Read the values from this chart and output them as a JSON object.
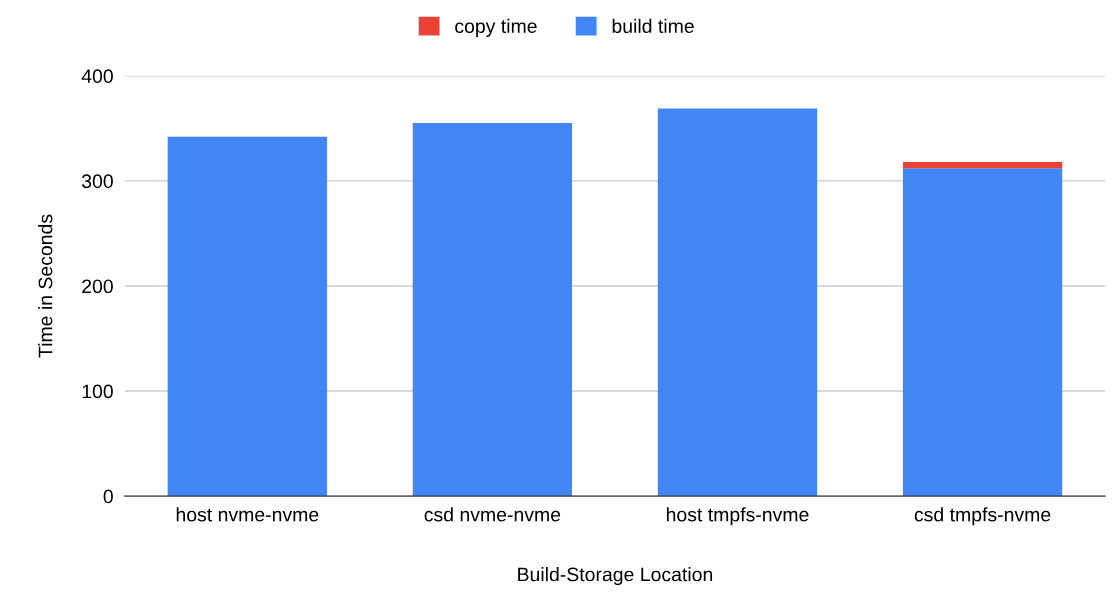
{
  "chart_data": {
    "type": "bar",
    "stacked": true,
    "xlabel": "Build-Storage Location",
    "ylabel": "Time in Seconds",
    "categories": [
      "host nvme-nvme",
      "csd nvme-nvme",
      "host tmpfs-nvme",
      "csd tmpfs-nvme"
    ],
    "series": [
      {
        "name": "build time",
        "color": "#4285f4",
        "values": [
          342,
          355,
          369,
          312
        ]
      },
      {
        "name": "copy time",
        "color": "#ea4335",
        "values": [
          0,
          0,
          0,
          6
        ]
      }
    ],
    "ylim": [
      0,
      400
    ],
    "yticks": [
      0,
      100,
      200,
      300,
      400
    ],
    "grid": "y",
    "legend": "top"
  }
}
